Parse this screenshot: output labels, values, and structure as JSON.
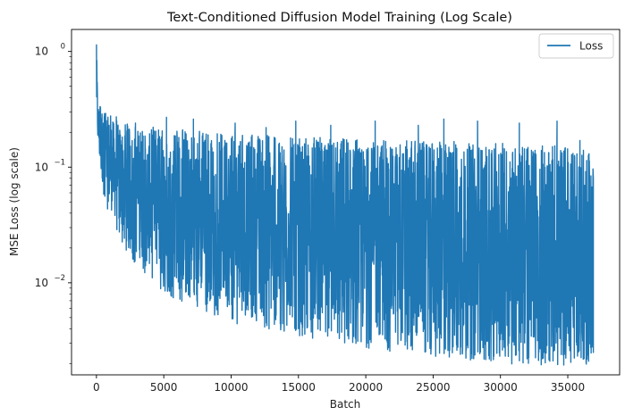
{
  "chart_data": {
    "type": "line",
    "title": "Text-Conditioned Diffusion Model Training (Log Scale)",
    "xlabel": "Batch",
    "ylabel": "MSE Loss (log scale)",
    "yscale": "log",
    "xlim": [
      -1850,
      38850
    ],
    "ylim": [
      0.0016,
      1.55
    ],
    "xticks": [
      0,
      5000,
      10000,
      15000,
      20000,
      25000,
      30000,
      35000
    ],
    "yticks": [
      {
        "value": 0.01,
        "base": "10",
        "exp": "−2"
      },
      {
        "value": 0.1,
        "base": "10",
        "exp": "−1"
      },
      {
        "value": 1,
        "base": "10",
        "exp": "0"
      }
    ],
    "grid": false,
    "legend_position": "top-right",
    "series": [
      {
        "name": "Loss",
        "color": "#1f77b4",
        "x_range": [
          0,
          36900
        ],
        "start_value": 1.15,
        "envelope": {
          "x": [
            0,
            100,
            250,
            500,
            1000,
            2000,
            3000,
            5000,
            7500,
            10000,
            15000,
            20000,
            25000,
            30000,
            36900
          ],
          "upper": [
            1.15,
            0.38,
            0.33,
            0.3,
            0.26,
            0.22,
            0.2,
            0.19,
            0.18,
            0.17,
            0.16,
            0.15,
            0.15,
            0.14,
            0.13
          ],
          "lower": [
            0.3,
            0.16,
            0.1,
            0.07,
            0.045,
            0.025,
            0.017,
            0.011,
            0.008,
            0.006,
            0.0045,
            0.0035,
            0.003,
            0.0027,
            0.0025
          ],
          "min": [
            0.3,
            0.14,
            0.08,
            0.05,
            0.035,
            0.02,
            0.014,
            0.008,
            0.006,
            0.0045,
            0.0035,
            0.0027,
            0.0023,
            0.002,
            0.0019
          ]
        },
        "spikes": [
          {
            "x": 300,
            "y": 0.33
          },
          {
            "x": 600,
            "y": 0.29
          },
          {
            "x": 1500,
            "y": 0.25
          },
          {
            "x": 2900,
            "y": 0.24
          },
          {
            "x": 5200,
            "y": 0.27
          },
          {
            "x": 7200,
            "y": 0.26
          },
          {
            "x": 10300,
            "y": 0.24
          },
          {
            "x": 12600,
            "y": 0.22
          },
          {
            "x": 14800,
            "y": 0.25
          },
          {
            "x": 17400,
            "y": 0.23
          },
          {
            "x": 20700,
            "y": 0.25
          },
          {
            "x": 23900,
            "y": 0.23
          },
          {
            "x": 25800,
            "y": 0.26
          },
          {
            "x": 28300,
            "y": 0.25
          },
          {
            "x": 31400,
            "y": 0.24
          },
          {
            "x": 34200,
            "y": 0.25
          },
          {
            "x": 35900,
            "y": 0.17
          }
        ],
        "end_values": [
          0.08,
          0.0025,
          0.023
        ]
      }
    ]
  }
}
